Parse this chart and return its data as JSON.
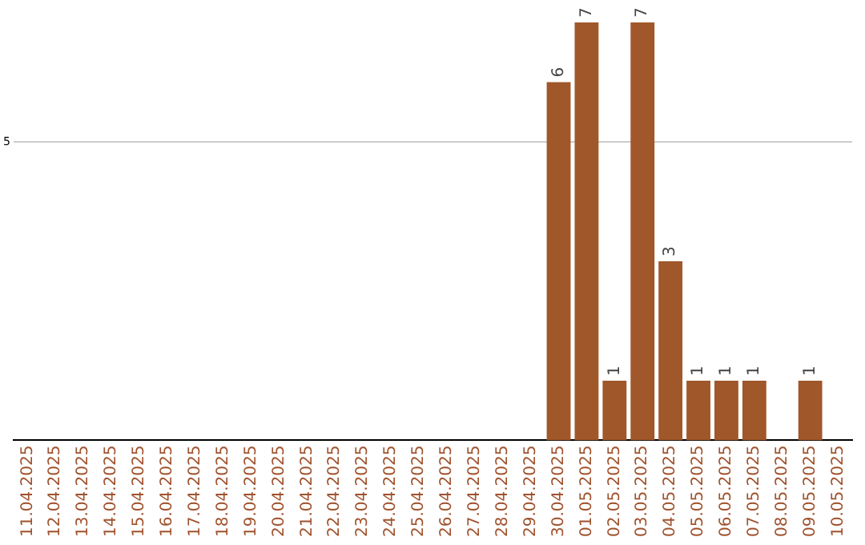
{
  "chart_data": {
    "type": "bar",
    "categories": [
      "11.04.2025",
      "12.04.2025",
      "13.04.2025",
      "14.04.2025",
      "15.04.2025",
      "16.04.2025",
      "17.04.2025",
      "18.04.2025",
      "19.04.2025",
      "20.04.2025",
      "21.04.2025",
      "22.04.2025",
      "23.04.2025",
      "24.04.2025",
      "25.04.2025",
      "26.04.2025",
      "27.04.2025",
      "28.04.2025",
      "29.04.2025",
      "30.04.2025",
      "01.05.2025",
      "02.05.2025",
      "03.05.2025",
      "04.05.2025",
      "05.05.2025",
      "06.05.2025",
      "07.05.2025",
      "08.05.2025",
      "09.05.2025",
      "10.05.2025"
    ],
    "values": [
      null,
      null,
      null,
      null,
      null,
      null,
      null,
      null,
      null,
      null,
      null,
      null,
      null,
      null,
      null,
      null,
      null,
      null,
      null,
      6,
      7,
      1,
      7,
      3,
      1,
      1,
      1,
      null,
      1,
      null
    ],
    "color": "#a0572a",
    "ylim": [
      0,
      7
    ],
    "yticks": [
      5
    ],
    "grid": "y",
    "legend": false,
    "data_labels": true
  }
}
